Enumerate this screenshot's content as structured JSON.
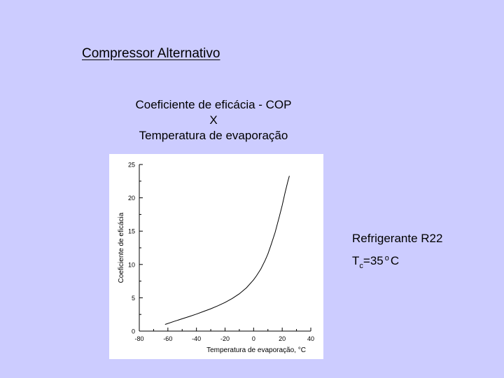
{
  "slide": {
    "title": "Compressor Alternativo",
    "subtitle_lines": [
      "Coeficiente de eficácia - COP",
      "X",
      "Temperatura de evaporação"
    ]
  },
  "note": {
    "line1": "Refrigerante R22",
    "tc_symbol": "T",
    "tc_subscript": "c",
    "tc_value": "=35",
    "degree": "o",
    "unit": "C"
  },
  "chart_data": {
    "type": "line",
    "title": "",
    "xlabel": "Temperatura de evaporação, °C",
    "ylabel": "Coeficiente de eficácia",
    "xlim": [
      -80,
      40
    ],
    "ylim": [
      0,
      25
    ],
    "xticks": [
      -80,
      -60,
      -40,
      -20,
      0,
      20,
      40
    ],
    "yticks": [
      0,
      5,
      10,
      15,
      20,
      25
    ],
    "x_tick_labels": [
      "-80",
      "-60",
      "-40",
      "-20",
      "0",
      "20",
      "40"
    ],
    "y_tick_labels": [
      "0",
      "5",
      "10",
      "15",
      "20",
      "25"
    ],
    "grid": false,
    "series": [
      {
        "x": [
          -62,
          -55,
          -50,
          -45,
          -40,
          -35,
          -30,
          -25,
          -20,
          -15,
          -10,
          -5,
          0,
          2,
          5,
          8,
          10,
          12,
          15,
          18,
          20,
          22,
          24,
          25
        ],
        "y": [
          1.0,
          1.5,
          1.85,
          2.2,
          2.55,
          2.95,
          3.35,
          3.8,
          4.3,
          4.9,
          5.6,
          6.5,
          7.7,
          8.3,
          9.3,
          10.6,
          11.6,
          12.8,
          14.8,
          17.2,
          18.9,
          20.8,
          22.5,
          23.3
        ]
      }
    ]
  }
}
